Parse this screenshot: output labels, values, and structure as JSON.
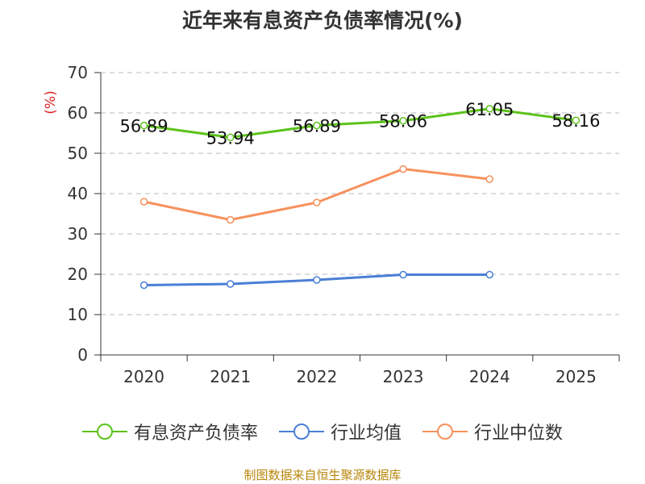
{
  "chart_data": {
    "type": "line",
    "title": "近年来有息资产负债率情况(%)",
    "ylabel": "(%)",
    "xlabel": "",
    "categories": [
      "2020",
      "2021",
      "2022",
      "2023",
      "2024",
      "2025"
    ],
    "ylim": [
      0,
      70
    ],
    "yticks": [
      0,
      10,
      20,
      30,
      40,
      50,
      60,
      70
    ],
    "grid": true,
    "legend_position": "bottom",
    "series": [
      {
        "name": "有息资产负债率",
        "values": [
          56.89,
          53.94,
          56.89,
          58.06,
          61.05,
          58.16
        ],
        "color": "#5cc21a",
        "labels": [
          "56.89",
          "53.94",
          "56.89",
          "58.06",
          "61.05",
          "58.16"
        ]
      },
      {
        "name": "行业均值",
        "values": [
          17.3,
          17.6,
          18.6,
          19.9,
          19.9,
          null
        ],
        "color": "#4a7fd6"
      },
      {
        "name": "行业中位数",
        "values": [
          38.0,
          33.5,
          37.8,
          46.1,
          43.6,
          null
        ],
        "color": "#f7915d"
      }
    ],
    "source": "制图数据来自恒生聚源数据库"
  }
}
